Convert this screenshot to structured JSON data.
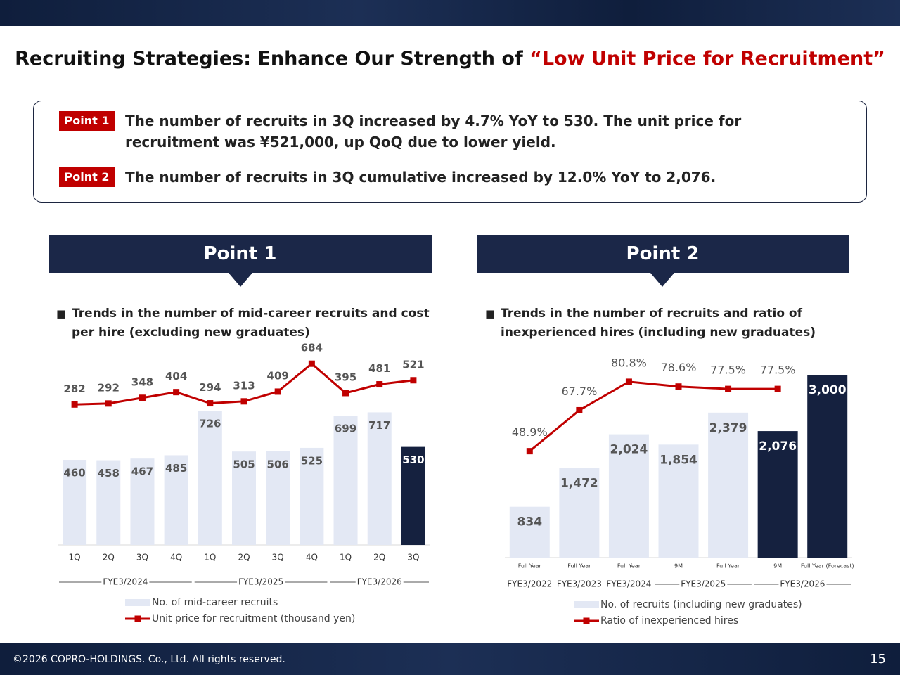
{
  "header": {
    "title": "Recruiting Strategies: Enhance Our Strength of",
    "title_highlight": "“Low Unit Price for Recruitment”"
  },
  "points": [
    {
      "label": "Point 1",
      "text": "The number of recruits in 3Q increased by 4.7% YoY to 530. The unit price for recruitment was ¥521,000, up QoQ due to lower yield."
    },
    {
      "label": "Point 2",
      "text": "The number of recruits in 3Q cumulative increased by 12.0% YoY to 2,076."
    }
  ],
  "panels": [
    "Point 1",
    "Point 2"
  ],
  "chart_data": [
    {
      "type": "bar",
      "title": "Trends in the number of mid-career recruits and cost per hire (excluding new graduates)",
      "categories": [
        "1Q",
        "2Q",
        "3Q",
        "4Q",
        "1Q",
        "2Q",
        "3Q",
        "4Q",
        "1Q",
        "2Q",
        "3Q"
      ],
      "category_groups": [
        "FYE3/2024",
        "FYE3/2024",
        "FYE3/2024",
        "FYE3/2024",
        "FYE3/2025",
        "FYE3/2025",
        "FYE3/2025",
        "FYE3/2025",
        "FYE3/2026",
        "FYE3/2026",
        "FYE3/2026"
      ],
      "series": [
        {
          "name": "No. of mid-career recruits",
          "type": "bar",
          "color": "#e3e8f4",
          "colors": [
            "#e3e8f4",
            "#e3e8f4",
            "#e3e8f4",
            "#e3e8f4",
            "#e3e8f4",
            "#e3e8f4",
            "#e3e8f4",
            "#e3e8f4",
            "#e3e8f4",
            "#e3e8f4",
            "#15213f"
          ],
          "values": [
            460,
            458,
            467,
            485,
            726,
            505,
            506,
            525,
            699,
            717,
            530
          ]
        },
        {
          "name": "Unit price for recruitment (thousand yen)",
          "type": "line",
          "color": "#c00000",
          "axis": "y2",
          "values": [
            282,
            292,
            348,
            404,
            294,
            313,
            409,
            684,
            395,
            481,
            521
          ]
        }
      ],
      "ylim": [
        0,
        1000
      ],
      "y2lim": [
        -1100,
        720
      ]
    },
    {
      "type": "bar",
      "title": "Trends in the number of recruits and ratio of inexperienced hires (including new graduates)",
      "categories": [
        "Full Year",
        "Full Year",
        "Full Year",
        "9M",
        "Full Year",
        "9M",
        "Full Year (Forecast)"
      ],
      "category_groups": [
        "FYE3/2022",
        "FYE3/2023",
        "FYE3/2024",
        "FYE3/2025",
        "FYE3/2025",
        "FYE3/2026",
        "FYE3/2026"
      ],
      "series": [
        {
          "name": "No. of recruits (including new graduates)",
          "type": "bar",
          "color": "#e3e8f4",
          "colors": [
            "#e3e8f4",
            "#e3e8f4",
            "#e3e8f4",
            "#e3e8f4",
            "#e3e8f4",
            "#15213f",
            "#15213f"
          ],
          "values": [
            834,
            1472,
            2024,
            1854,
            2379,
            2076,
            3000
          ],
          "value_labels": [
            "834",
            "1,472",
            "2,024",
            "1,854",
            "2,379",
            "2,076",
            "3,000"
          ]
        },
        {
          "name": "Ratio of inexperienced hires",
          "type": "line",
          "color": "#c00000",
          "axis": "y2",
          "values": [
            48.9,
            67.7,
            80.8,
            78.6,
            77.5,
            77.5,
            null
          ],
          "value_labels": [
            "48.9%",
            "67.7%",
            "80.8%",
            "78.6%",
            "77.5%",
            "77.5%",
            null
          ]
        }
      ],
      "ylim": [
        0,
        3000
      ],
      "y2lim": [
        0,
        84
      ]
    }
  ],
  "footer": {
    "copyright": "©2026 COPRO-HOLDINGS. Co., Ltd. All rights reserved.",
    "page": 15
  }
}
